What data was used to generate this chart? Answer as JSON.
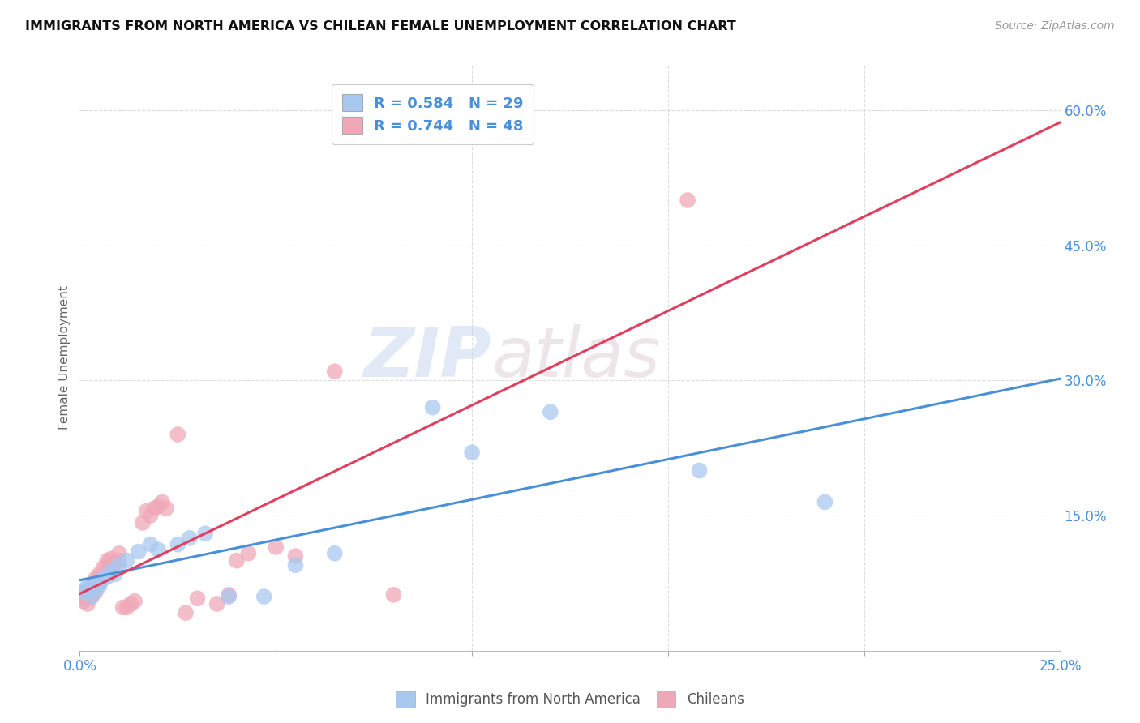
{
  "title": "IMMIGRANTS FROM NORTH AMERICA VS CHILEAN FEMALE UNEMPLOYMENT CORRELATION CHART",
  "source": "Source: ZipAtlas.com",
  "ylabel": "Female Unemployment",
  "xlim": [
    0.0,
    0.25
  ],
  "ylim": [
    0.0,
    0.65
  ],
  "xtick_positions": [
    0.0,
    0.05,
    0.1,
    0.15,
    0.2,
    0.25
  ],
  "xticklabels": [
    "0.0%",
    "",
    "",
    "",
    "",
    "25.0%"
  ],
  "yticks_right": [
    0.15,
    0.3,
    0.45,
    0.6
  ],
  "ytick_right_labels": [
    "15.0%",
    "30.0%",
    "45.0%",
    "60.0%"
  ],
  "blue_color": "#a8c8f0",
  "pink_color": "#f0a8b8",
  "blue_line_color": "#4a90d9",
  "pink_line_color": "#e04060",
  "legend_text_color": "#4a90d9",
  "r_blue": 0.584,
  "n_blue": 29,
  "r_pink": 0.744,
  "n_pink": 48,
  "blue_points_x": [
    0.001,
    0.002,
    0.002,
    0.003,
    0.003,
    0.004,
    0.005,
    0.005,
    0.006,
    0.007,
    0.008,
    0.009,
    0.01,
    0.012,
    0.015,
    0.018,
    0.02,
    0.025,
    0.028,
    0.032,
    0.038,
    0.047,
    0.055,
    0.065,
    0.09,
    0.1,
    0.12,
    0.158,
    0.19
  ],
  "blue_points_y": [
    0.065,
    0.068,
    0.072,
    0.06,
    0.07,
    0.068,
    0.075,
    0.072,
    0.08,
    0.082,
    0.088,
    0.085,
    0.095,
    0.1,
    0.11,
    0.118,
    0.112,
    0.118,
    0.125,
    0.13,
    0.06,
    0.06,
    0.095,
    0.108,
    0.27,
    0.22,
    0.265,
    0.2,
    0.165
  ],
  "pink_points_x": [
    0.001,
    0.001,
    0.001,
    0.002,
    0.002,
    0.002,
    0.003,
    0.003,
    0.003,
    0.004,
    0.004,
    0.004,
    0.005,
    0.005,
    0.005,
    0.006,
    0.006,
    0.007,
    0.007,
    0.007,
    0.008,
    0.008,
    0.009,
    0.01,
    0.01,
    0.011,
    0.012,
    0.013,
    0.014,
    0.016,
    0.017,
    0.018,
    0.019,
    0.02,
    0.021,
    0.022,
    0.025,
    0.027,
    0.03,
    0.035,
    0.038,
    0.04,
    0.043,
    0.05,
    0.055,
    0.065,
    0.08,
    0.155
  ],
  "pink_points_y": [
    0.055,
    0.06,
    0.065,
    0.052,
    0.058,
    0.065,
    0.06,
    0.068,
    0.072,
    0.065,
    0.075,
    0.08,
    0.075,
    0.082,
    0.085,
    0.082,
    0.092,
    0.085,
    0.095,
    0.1,
    0.095,
    0.102,
    0.098,
    0.1,
    0.108,
    0.048,
    0.048,
    0.052,
    0.055,
    0.142,
    0.155,
    0.15,
    0.158,
    0.16,
    0.165,
    0.158,
    0.24,
    0.042,
    0.058,
    0.052,
    0.062,
    0.1,
    0.108,
    0.115,
    0.105,
    0.31,
    0.062,
    0.5
  ],
  "watermark_zip": "ZIP",
  "watermark_atlas": "atlas",
  "grid_color": "#dddddd",
  "background_color": "#ffffff"
}
